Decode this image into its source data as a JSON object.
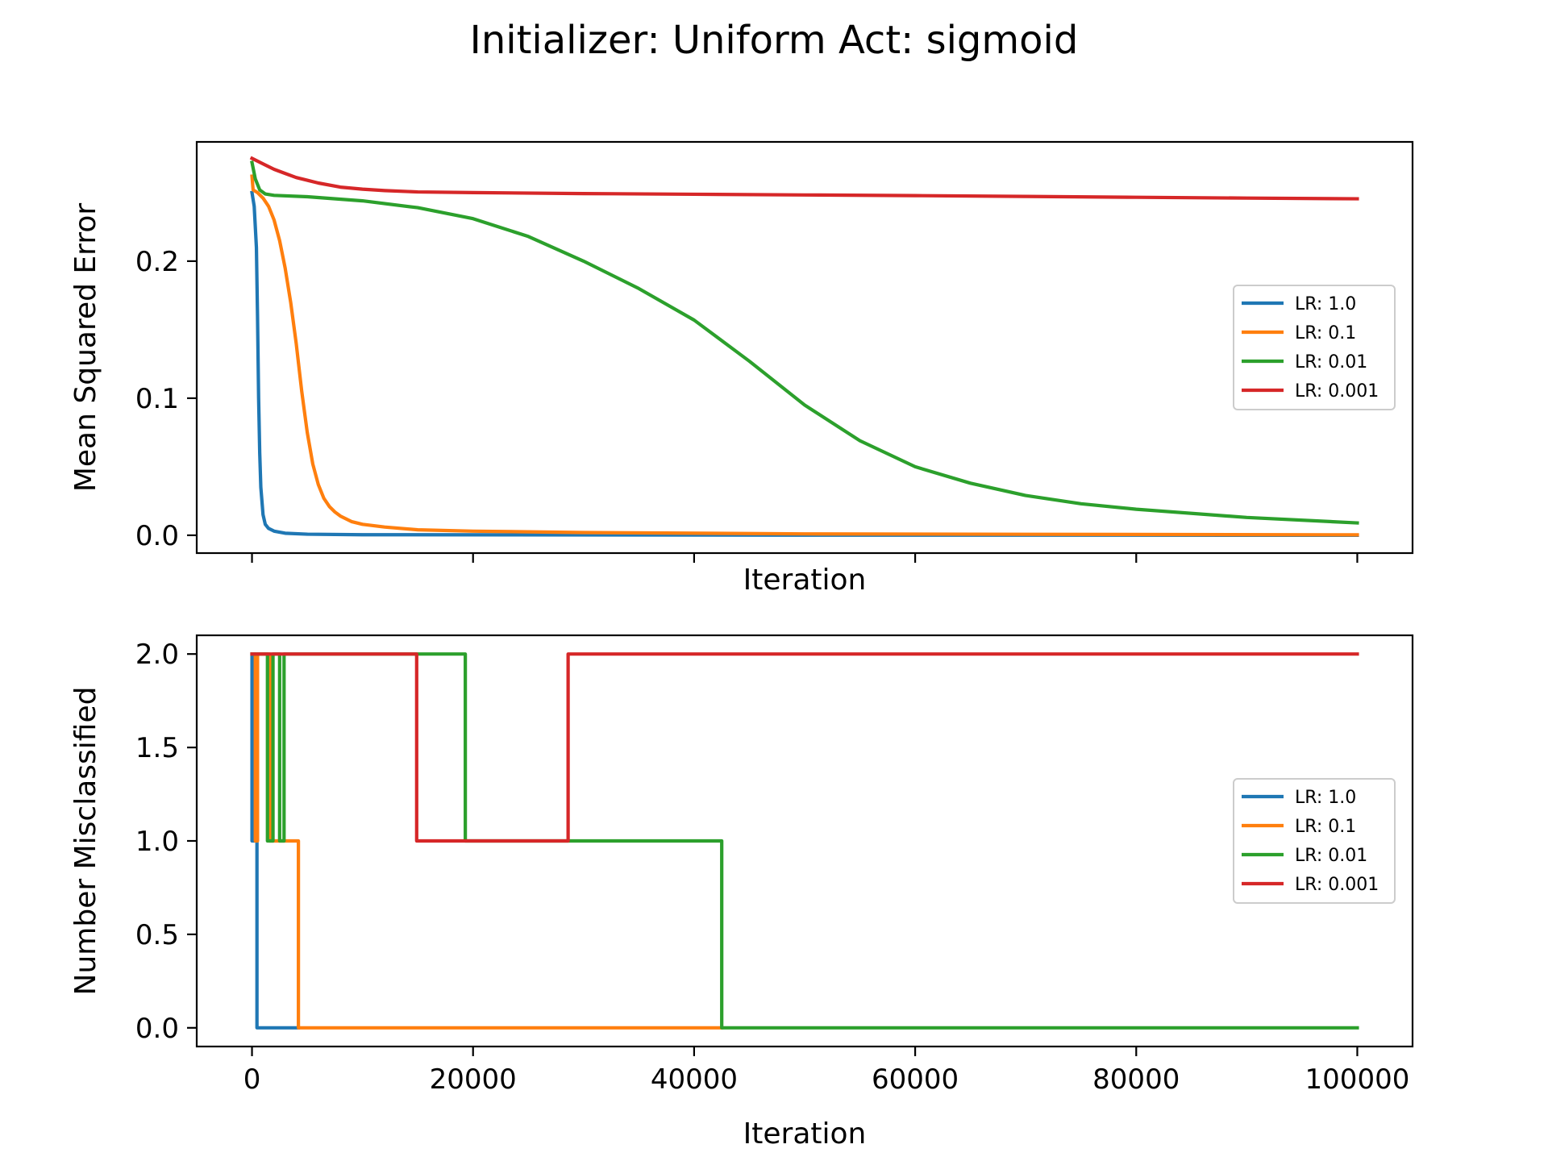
{
  "figure": {
    "title": "Initializer: Uniform Act: sigmoid"
  },
  "chart_data": [
    {
      "type": "line",
      "title": "",
      "xlabel": "Iteration",
      "ylabel": "Mean Squared Error",
      "xlim": [
        -5000,
        105000
      ],
      "ylim": [
        -0.013,
        0.287
      ],
      "xticks": [
        0,
        20000,
        40000,
        60000,
        80000,
        100000
      ],
      "xtick_labels_visible": false,
      "yticks": [
        0.0,
        0.1,
        0.2
      ],
      "ytick_labels": [
        "0.0",
        "0.1",
        "0.2"
      ],
      "grid": false,
      "legend_position": "center-right",
      "series": [
        {
          "name": "LR: 1.0",
          "color": "#1f77b4",
          "x": [
            0,
            200,
            400,
            500,
            600,
            700,
            800,
            1000,
            1200,
            1500,
            2000,
            3000,
            5000,
            10000,
            50000,
            100000
          ],
          "y": [
            0.25,
            0.24,
            0.21,
            0.16,
            0.1,
            0.06,
            0.035,
            0.015,
            0.008,
            0.005,
            0.003,
            0.0015,
            0.0008,
            0.0004,
            0.0001,
            0.0
          ]
        },
        {
          "name": "LR: 0.1",
          "color": "#ff7f0e",
          "x": [
            0,
            100,
            500,
            1000,
            1500,
            2000,
            2500,
            3000,
            3500,
            4000,
            4500,
            5000,
            5500,
            6000,
            6500,
            7000,
            7500,
            8000,
            9000,
            10000,
            12000,
            15000,
            20000,
            30000,
            50000,
            100000
          ],
          "y": [
            0.262,
            0.252,
            0.25,
            0.246,
            0.24,
            0.23,
            0.215,
            0.195,
            0.17,
            0.14,
            0.105,
            0.075,
            0.052,
            0.037,
            0.027,
            0.021,
            0.017,
            0.014,
            0.01,
            0.008,
            0.006,
            0.004,
            0.003,
            0.002,
            0.001,
            0.0003
          ]
        },
        {
          "name": "LR: 0.01",
          "color": "#2ca02c",
          "x": [
            0,
            300,
            700,
            1200,
            2000,
            5000,
            10000,
            15000,
            20000,
            25000,
            30000,
            35000,
            40000,
            45000,
            50000,
            55000,
            60000,
            65000,
            70000,
            75000,
            80000,
            90000,
            100000
          ],
          "y": [
            0.272,
            0.26,
            0.252,
            0.249,
            0.248,
            0.247,
            0.244,
            0.239,
            0.231,
            0.218,
            0.2,
            0.18,
            0.157,
            0.127,
            0.095,
            0.069,
            0.05,
            0.038,
            0.029,
            0.023,
            0.019,
            0.013,
            0.009
          ]
        },
        {
          "name": "LR: 0.001",
          "color": "#d62728",
          "x": [
            0,
            1000,
            2000,
            3000,
            4000,
            5000,
            6000,
            8000,
            10000,
            12000,
            15000,
            20000,
            30000,
            40000,
            50000,
            60000,
            70000,
            80000,
            90000,
            100000
          ],
          "y": [
            0.275,
            0.271,
            0.267,
            0.264,
            0.261,
            0.259,
            0.257,
            0.254,
            0.2525,
            0.2515,
            0.2505,
            0.25,
            0.2493,
            0.2488,
            0.2483,
            0.2478,
            0.2472,
            0.2466,
            0.246,
            0.2455
          ]
        }
      ]
    },
    {
      "type": "line",
      "title": "",
      "xlabel": "Iteration",
      "ylabel": "Number Misclassified",
      "xlim": [
        -5000,
        105000
      ],
      "ylim": [
        -0.1,
        2.1
      ],
      "xticks": [
        0,
        20000,
        40000,
        60000,
        80000,
        100000
      ],
      "xtick_labels": [
        "0",
        "20000",
        "40000",
        "60000",
        "80000",
        "100000"
      ],
      "yticks": [
        0.0,
        0.5,
        1.0,
        1.5,
        2.0
      ],
      "ytick_labels": [
        "0.0",
        "0.5",
        "1.0",
        "1.5",
        "2.0"
      ],
      "grid": false,
      "legend_position": "center-right",
      "series": [
        {
          "name": "LR: 1.0",
          "color": "#1f77b4",
          "x": [
            0,
            1,
            1,
            200,
            200,
            300,
            300,
            450,
            450,
            4200
          ],
          "y": [
            2,
            2,
            1,
            1,
            2,
            2,
            1,
            1,
            0,
            0
          ]
        },
        {
          "name": "LR: 0.1",
          "color": "#ff7f0e",
          "x": [
            0,
            300,
            300,
            500,
            500,
            1600,
            1600,
            4200,
            4200,
            42500
          ],
          "y": [
            2,
            2,
            1,
            1,
            2,
            2,
            1,
            1,
            0,
            0
          ]
        },
        {
          "name": "LR: 0.01",
          "color": "#2ca02c",
          "x": [
            0,
            1400,
            1400,
            1900,
            1900,
            2500,
            2500,
            2900,
            2900,
            19300,
            19300,
            42500,
            42500,
            100000
          ],
          "y": [
            2,
            2,
            1,
            1,
            2,
            2,
            1,
            1,
            2,
            2,
            1,
            1,
            0,
            0
          ]
        },
        {
          "name": "LR: 0.001",
          "color": "#d62728",
          "x": [
            0,
            14900,
            14900,
            28600,
            28600,
            100000
          ],
          "y": [
            2,
            2,
            1,
            1,
            2,
            2
          ]
        }
      ]
    }
  ]
}
